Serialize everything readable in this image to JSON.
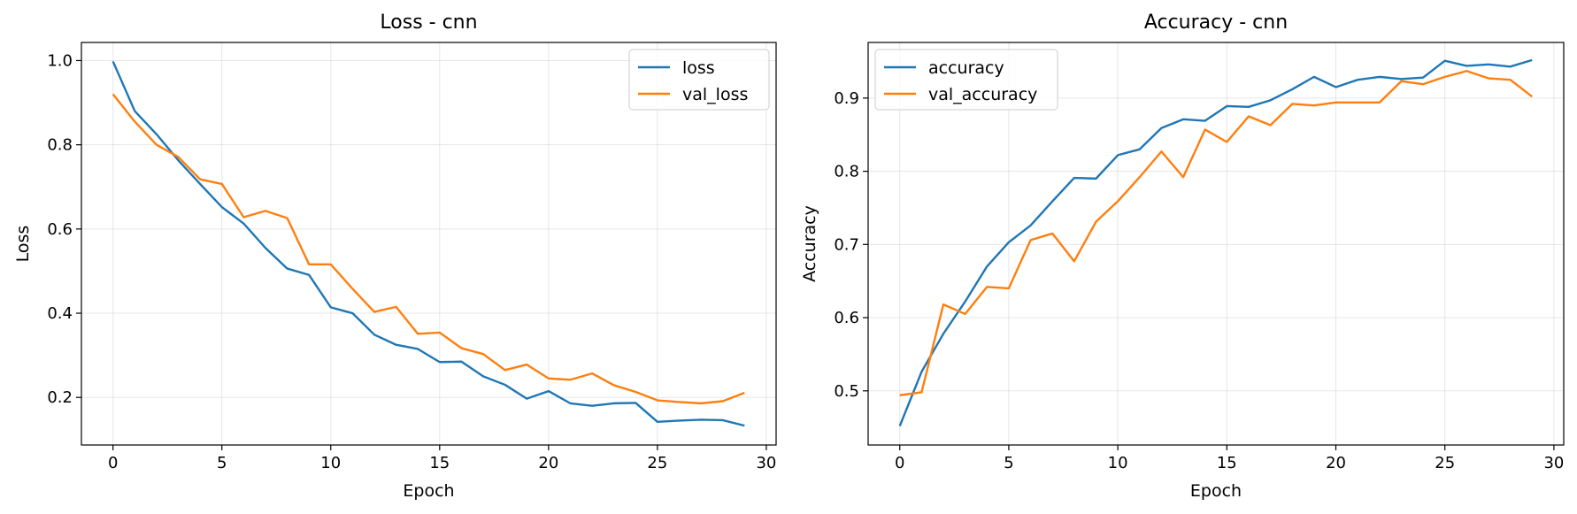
{
  "colors": {
    "series1": "#1f77b4",
    "series2": "#ff7f0e"
  },
  "chart_data": [
    {
      "type": "line",
      "title": "Loss - cnn",
      "xlabel": "Epoch",
      "ylabel": "Loss",
      "xlim": [
        -1.45,
        30.45
      ],
      "ylim": [
        0.087,
        1.043
      ],
      "xticks": [
        0,
        5,
        10,
        15,
        20,
        25,
        30
      ],
      "yticks": [
        0.2,
        0.4,
        0.6,
        0.8,
        1.0
      ],
      "ytick_labels": [
        "0.2",
        "0.4",
        "0.6",
        "0.8",
        "1.0"
      ],
      "grid": true,
      "legend": "top-right",
      "x": [
        0,
        1,
        2,
        3,
        4,
        5,
        6,
        7,
        8,
        9,
        10,
        11,
        12,
        13,
        14,
        15,
        16,
        17,
        18,
        19,
        20,
        21,
        22,
        23,
        24,
        25,
        26,
        27,
        28,
        29
      ],
      "series": [
        {
          "name": "loss",
          "color": "#1f77b4",
          "values": [
            0.998,
            0.88,
            0.825,
            0.763,
            0.707,
            0.652,
            0.613,
            0.555,
            0.506,
            0.491,
            0.414,
            0.4,
            0.349,
            0.325,
            0.315,
            0.284,
            0.285,
            0.25,
            0.23,
            0.197,
            0.215,
            0.186,
            0.18,
            0.186,
            0.187,
            0.142,
            0.145,
            0.147,
            0.146,
            0.133
          ]
        },
        {
          "name": "val_loss",
          "color": "#ff7f0e",
          "values": [
            0.92,
            0.855,
            0.8,
            0.771,
            0.718,
            0.707,
            0.628,
            0.643,
            0.626,
            0.516,
            0.516,
            0.458,
            0.403,
            0.415,
            0.351,
            0.354,
            0.317,
            0.303,
            0.265,
            0.278,
            0.245,
            0.242,
            0.257,
            0.229,
            0.213,
            0.193,
            0.189,
            0.186,
            0.191,
            0.211
          ]
        }
      ]
    },
    {
      "type": "line",
      "title": "Accuracy - cnn",
      "xlabel": "Epoch",
      "ylabel": "Accuracy",
      "xlim": [
        -1.45,
        30.45
      ],
      "ylim": [
        0.426,
        0.976
      ],
      "xticks": [
        0,
        5,
        10,
        15,
        20,
        25,
        30
      ],
      "yticks": [
        0.5,
        0.6,
        0.7,
        0.8,
        0.9
      ],
      "ytick_labels": [
        "0.5",
        "0.6",
        "0.7",
        "0.8",
        "0.9"
      ],
      "grid": true,
      "legend": "top-left",
      "x": [
        0,
        1,
        2,
        3,
        4,
        5,
        6,
        7,
        8,
        9,
        10,
        11,
        12,
        13,
        14,
        15,
        16,
        17,
        18,
        19,
        20,
        21,
        22,
        23,
        24,
        25,
        26,
        27,
        28,
        29
      ],
      "series": [
        {
          "name": "accuracy",
          "color": "#1f77b4",
          "values": [
            0.452,
            0.526,
            0.578,
            0.622,
            0.67,
            0.703,
            0.726,
            0.759,
            0.791,
            0.79,
            0.822,
            0.83,
            0.859,
            0.871,
            0.869,
            0.889,
            0.888,
            0.897,
            0.912,
            0.929,
            0.915,
            0.925,
            0.929,
            0.926,
            0.928,
            0.951,
            0.944,
            0.946,
            0.943,
            0.952
          ]
        },
        {
          "name": "val_accuracy",
          "color": "#ff7f0e",
          "values": [
            0.494,
            0.498,
            0.618,
            0.605,
            0.642,
            0.64,
            0.706,
            0.715,
            0.677,
            0.731,
            0.759,
            0.792,
            0.827,
            0.792,
            0.857,
            0.84,
            0.875,
            0.863,
            0.892,
            0.89,
            0.894,
            0.894,
            0.894,
            0.923,
            0.919,
            0.929,
            0.937,
            0.927,
            0.925,
            0.902
          ]
        }
      ]
    }
  ]
}
